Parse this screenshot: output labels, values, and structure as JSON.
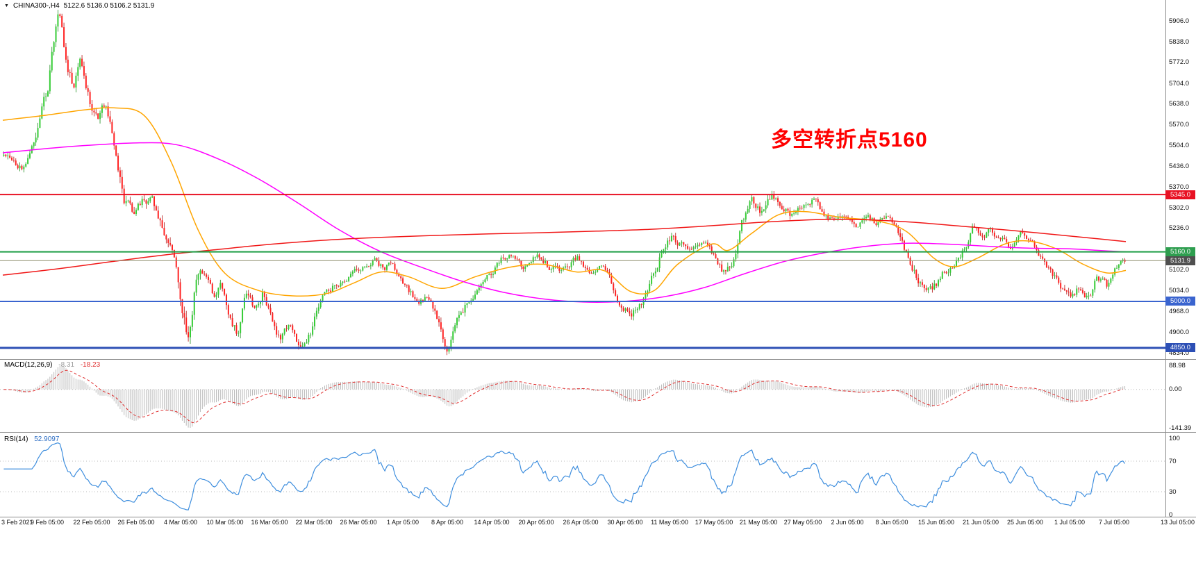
{
  "icons": {
    "menu_triangle": "▼"
  },
  "chart_data": {
    "type": "candlestick",
    "symbol_period": "CHINA300-,H4",
    "ohlc_readout": "5122.6 5136.0 5106.2 5131.9",
    "ohlc": {
      "open": 5122.6,
      "high": 5136.0,
      "low": 5106.2,
      "close": 5131.9
    },
    "price_scale": {
      "top": 5906.0,
      "bottom": 4834.0
    },
    "price_axis_ticks": [
      "5906.0",
      "5838.0",
      "5772.0",
      "5704.0",
      "5638.0",
      "5570.0",
      "5504.0",
      "5436.0",
      "5370.0",
      "5302.0",
      "5236.0",
      "5102.0",
      "5034.0",
      "4968.0",
      "4900.0",
      "4834.0"
    ],
    "horizontal_levels": [
      {
        "value": 5345.0,
        "label": "5345.0",
        "color": "#e81123",
        "badge_color": "#e81123",
        "line_width": 2
      },
      {
        "value": 5160.0,
        "label": "5160.0",
        "color": "#1e9e46",
        "badge_color": "#2e9e4f",
        "line_width": 2
      },
      {
        "value": 5131.9,
        "label": "5131.9",
        "color": "#8f8f6e",
        "badge_color": "#4f4f4f",
        "line_width": 1
      },
      {
        "value": 5000.0,
        "label": "5000.0",
        "color": "#3a64cf",
        "badge_color": "#3a64cf",
        "line_width": 2
      },
      {
        "value": 4850.0,
        "label": "4850.0",
        "color": "#2c4fb5",
        "badge_color": "#2c4fb5",
        "line_width": 3
      }
    ],
    "annotation": {
      "text": "多空转折点5160",
      "color": "#ff0000"
    },
    "bars": 560,
    "seed": 1131,
    "up_color": "#35cc35",
    "down_color": "#ff2222",
    "price_path": [
      [
        0.0,
        5470,
        24
      ],
      [
        0.018,
        5430,
        24
      ],
      [
        0.03,
        5560,
        34
      ],
      [
        0.039,
        5680,
        40
      ],
      [
        0.045,
        5850,
        42
      ],
      [
        0.049,
        5920,
        42
      ],
      [
        0.057,
        5760,
        40
      ],
      [
        0.063,
        5690,
        36
      ],
      [
        0.067,
        5790,
        36
      ],
      [
        0.077,
        5650,
        34
      ],
      [
        0.084,
        5600,
        32
      ],
      [
        0.091,
        5640,
        32
      ],
      [
        0.099,
        5500,
        42
      ],
      [
        0.107,
        5330,
        46
      ],
      [
        0.115,
        5280,
        40
      ],
      [
        0.123,
        5320,
        36
      ],
      [
        0.131,
        5340,
        36
      ],
      [
        0.138,
        5280,
        38
      ],
      [
        0.146,
        5180,
        42
      ],
      [
        0.154,
        5120,
        44
      ],
      [
        0.159,
        4950,
        48
      ],
      [
        0.164,
        4880,
        46
      ],
      [
        0.171,
        5060,
        40
      ],
      [
        0.18,
        5090,
        30
      ],
      [
        0.188,
        5020,
        30
      ],
      [
        0.194,
        5070,
        30
      ],
      [
        0.201,
        4950,
        34
      ],
      [
        0.209,
        4900,
        34
      ],
      [
        0.216,
        5040,
        32
      ],
      [
        0.224,
        4960,
        30
      ],
      [
        0.231,
        5030,
        28
      ],
      [
        0.238,
        4960,
        28
      ],
      [
        0.246,
        4880,
        30
      ],
      [
        0.255,
        4920,
        28
      ],
      [
        0.264,
        4860,
        30
      ],
      [
        0.273,
        4900,
        28
      ],
      [
        0.283,
        5000,
        28
      ],
      [
        0.295,
        5050,
        24
      ],
      [
        0.308,
        5070,
        22
      ],
      [
        0.319,
        5110,
        22
      ],
      [
        0.331,
        5140,
        22
      ],
      [
        0.34,
        5100,
        22
      ],
      [
        0.346,
        5130,
        22
      ],
      [
        0.358,
        5050,
        24
      ],
      [
        0.37,
        5000,
        24
      ],
      [
        0.38,
        5010,
        24
      ],
      [
        0.389,
        4930,
        34
      ],
      [
        0.395,
        4840,
        40
      ],
      [
        0.401,
        4900,
        34
      ],
      [
        0.412,
        4990,
        28
      ],
      [
        0.423,
        5040,
        24
      ],
      [
        0.434,
        5090,
        22
      ],
      [
        0.445,
        5140,
        22
      ],
      [
        0.454,
        5160,
        22
      ],
      [
        0.463,
        5110,
        22
      ],
      [
        0.475,
        5150,
        22
      ],
      [
        0.487,
        5110,
        22
      ],
      [
        0.5,
        5100,
        22
      ],
      [
        0.511,
        5140,
        22
      ],
      [
        0.522,
        5090,
        22
      ],
      [
        0.532,
        5120,
        22
      ],
      [
        0.541,
        5070,
        24
      ],
      [
        0.55,
        4990,
        28
      ],
      [
        0.559,
        4950,
        28
      ],
      [
        0.568,
        4990,
        26
      ],
      [
        0.577,
        5060,
        30
      ],
      [
        0.586,
        5150,
        32
      ],
      [
        0.595,
        5210,
        30
      ],
      [
        0.604,
        5180,
        26
      ],
      [
        0.615,
        5160,
        24
      ],
      [
        0.625,
        5185,
        22
      ],
      [
        0.634,
        5145,
        24
      ],
      [
        0.643,
        5090,
        26
      ],
      [
        0.65,
        5130,
        30
      ],
      [
        0.658,
        5250,
        36
      ],
      [
        0.667,
        5320,
        34
      ],
      [
        0.676,
        5290,
        30
      ],
      [
        0.685,
        5340,
        30
      ],
      [
        0.692,
        5320,
        28
      ],
      [
        0.702,
        5280,
        26
      ],
      [
        0.712,
        5300,
        24
      ],
      [
        0.721,
        5330,
        24
      ],
      [
        0.731,
        5290,
        24
      ],
      [
        0.74,
        5250,
        24
      ],
      [
        0.75,
        5280,
        22
      ],
      [
        0.76,
        5240,
        24
      ],
      [
        0.769,
        5270,
        22
      ],
      [
        0.78,
        5250,
        22
      ],
      [
        0.79,
        5280,
        22
      ],
      [
        0.799,
        5210,
        26
      ],
      [
        0.808,
        5130,
        30
      ],
      [
        0.817,
        5060,
        30
      ],
      [
        0.828,
        5030,
        28
      ],
      [
        0.838,
        5090,
        26
      ],
      [
        0.846,
        5110,
        26
      ],
      [
        0.855,
        5160,
        28
      ],
      [
        0.864,
        5240,
        30
      ],
      [
        0.873,
        5200,
        26
      ],
      [
        0.88,
        5235,
        24
      ],
      [
        0.889,
        5200,
        22
      ],
      [
        0.898,
        5175,
        22
      ],
      [
        0.908,
        5215,
        22
      ],
      [
        0.917,
        5190,
        22
      ],
      [
        0.923,
        5150,
        24
      ],
      [
        0.933,
        5100,
        26
      ],
      [
        0.942,
        5050,
        26
      ],
      [
        0.951,
        5020,
        26
      ],
      [
        0.96,
        5045,
        24
      ],
      [
        0.969,
        5000,
        26
      ],
      [
        0.975,
        5080,
        26
      ],
      [
        0.984,
        5050,
        24
      ],
      [
        0.992,
        5110,
        22
      ],
      [
        1.0,
        5132,
        20
      ]
    ],
    "moving_averages": [
      {
        "name": "ma-fast-orange",
        "color": "#ffa500",
        "points": [
          [
            0.0,
            5585
          ],
          [
            0.036,
            5600
          ],
          [
            0.072,
            5618
          ],
          [
            0.099,
            5625
          ],
          [
            0.126,
            5600
          ],
          [
            0.15,
            5450
          ],
          [
            0.174,
            5230
          ],
          [
            0.198,
            5090
          ],
          [
            0.228,
            5035
          ],
          [
            0.258,
            5018
          ],
          [
            0.288,
            5025
          ],
          [
            0.313,
            5060
          ],
          [
            0.337,
            5095
          ],
          [
            0.361,
            5080
          ],
          [
            0.391,
            5042
          ],
          [
            0.421,
            5080
          ],
          [
            0.451,
            5110
          ],
          [
            0.481,
            5120
          ],
          [
            0.511,
            5095
          ],
          [
            0.535,
            5100
          ],
          [
            0.559,
            5032
          ],
          [
            0.58,
            5035
          ],
          [
            0.601,
            5120
          ],
          [
            0.631,
            5185
          ],
          [
            0.646,
            5165
          ],
          [
            0.667,
            5220
          ],
          [
            0.691,
            5280
          ],
          [
            0.715,
            5290
          ],
          [
            0.745,
            5272
          ],
          [
            0.781,
            5258
          ],
          [
            0.805,
            5225
          ],
          [
            0.829,
            5140
          ],
          [
            0.847,
            5112
          ],
          [
            0.868,
            5140
          ],
          [
            0.892,
            5185
          ],
          [
            0.913,
            5195
          ],
          [
            0.938,
            5170
          ],
          [
            0.962,
            5120
          ],
          [
            0.983,
            5092
          ],
          [
            1.0,
            5100
          ]
        ]
      },
      {
        "name": "ma-mid-magenta",
        "color": "#ff00ff",
        "points": [
          [
            0.0,
            5480
          ],
          [
            0.06,
            5500
          ],
          [
            0.12,
            5512
          ],
          [
            0.156,
            5505
          ],
          [
            0.192,
            5460
          ],
          [
            0.228,
            5395
          ],
          [
            0.264,
            5315
          ],
          [
            0.3,
            5230
          ],
          [
            0.337,
            5160
          ],
          [
            0.373,
            5110
          ],
          [
            0.409,
            5065
          ],
          [
            0.445,
            5030
          ],
          [
            0.481,
            5008
          ],
          [
            0.517,
            4998
          ],
          [
            0.553,
            5000
          ],
          [
            0.589,
            5015
          ],
          [
            0.625,
            5045
          ],
          [
            0.661,
            5090
          ],
          [
            0.697,
            5130
          ],
          [
            0.733,
            5158
          ],
          [
            0.769,
            5178
          ],
          [
            0.805,
            5188
          ],
          [
            0.841,
            5185
          ],
          [
            0.877,
            5178
          ],
          [
            0.913,
            5172
          ],
          [
            0.95,
            5170
          ],
          [
            0.974,
            5165
          ],
          [
            1.0,
            5160
          ]
        ]
      },
      {
        "name": "ma-slow-red",
        "color": "#f01616",
        "points": [
          [
            0.0,
            5085
          ],
          [
            0.048,
            5105
          ],
          [
            0.096,
            5128
          ],
          [
            0.144,
            5150
          ],
          [
            0.192,
            5168
          ],
          [
            0.24,
            5185
          ],
          [
            0.288,
            5198
          ],
          [
            0.337,
            5207
          ],
          [
            0.385,
            5213
          ],
          [
            0.433,
            5218
          ],
          [
            0.481,
            5222
          ],
          [
            0.529,
            5227
          ],
          [
            0.577,
            5233
          ],
          [
            0.625,
            5243
          ],
          [
            0.673,
            5255
          ],
          [
            0.709,
            5262
          ],
          [
            0.745,
            5265
          ],
          [
            0.781,
            5262
          ],
          [
            0.817,
            5254
          ],
          [
            0.853,
            5243
          ],
          [
            0.889,
            5232
          ],
          [
            0.925,
            5220
          ],
          [
            0.962,
            5207
          ],
          [
            1.0,
            5193
          ]
        ]
      }
    ],
    "macd": {
      "name": "MACD(12,26,9)",
      "value_macd": "-8.31",
      "value_signal": "-18.23",
      "axis_ticks": [
        "88.98",
        "0.00",
        "-141.39"
      ],
      "scale_max": 88.98,
      "scale_min": -141.39,
      "histogram_color": "#b9b9b9",
      "signal_color": "#e03030"
    },
    "rsi": {
      "name": "RSI(14)",
      "value": "52.9097",
      "axis_ticks": [
        "100",
        "70",
        "30",
        "0"
      ],
      "axis_values": [
        100,
        70,
        30,
        0
      ],
      "levels": [
        70,
        30
      ],
      "color": "#3e8ede"
    },
    "x_axis_labels": [
      "3 Feb 2021",
      "9 Feb 05:00",
      "22 Feb 05:00",
      "26 Feb 05:00",
      "4 Mar 05:00",
      "10 Mar 05:00",
      "16 Mar 05:00",
      "22 Mar 05:00",
      "26 Mar 05:00",
      "1 Apr 05:00",
      "8 Apr 05:00",
      "14 Apr 05:00",
      "20 Apr 05:00",
      "26 Apr 05:00",
      "30 Apr 05:00",
      "11 May 05:00",
      "17 May 05:00",
      "21 May 05:00",
      "27 May 05:00",
      "2 Jun 05:00",
      "8 Jun 05:00",
      "15 Jun 05:00",
      "21 Jun 05:00",
      "25 Jun 05:00",
      "1 Jul 05:00",
      "7 Jul 05:00",
      "13 Jul 05:00"
    ]
  }
}
